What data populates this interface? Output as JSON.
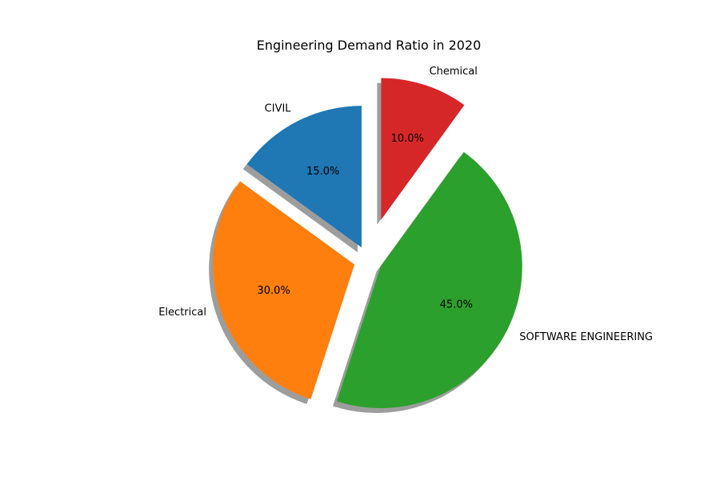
{
  "chart_data": {
    "type": "pie",
    "title": "Engineering Demand Ratio in 2020",
    "slices": [
      {
        "label": "CIVIL",
        "value": 15,
        "pct_label": "15.0%",
        "color": "#1f77b4",
        "explode": 0.1
      },
      {
        "label": "Electrical",
        "value": 30,
        "pct_label": "30.0%",
        "color": "#ff7f0e",
        "explode": 0.1
      },
      {
        "label": "SOFTWARE ENGINEERING",
        "value": 45,
        "pct_label": "45.0%",
        "color": "#2ca02c",
        "explode": 0.1
      },
      {
        "label": "Chemical",
        "value": 10,
        "pct_label": "10.0%",
        "color": "#d62728",
        "explode": 0.3
      }
    ],
    "start_angle": 90,
    "direction": "counterclockwise",
    "shadow": true
  }
}
